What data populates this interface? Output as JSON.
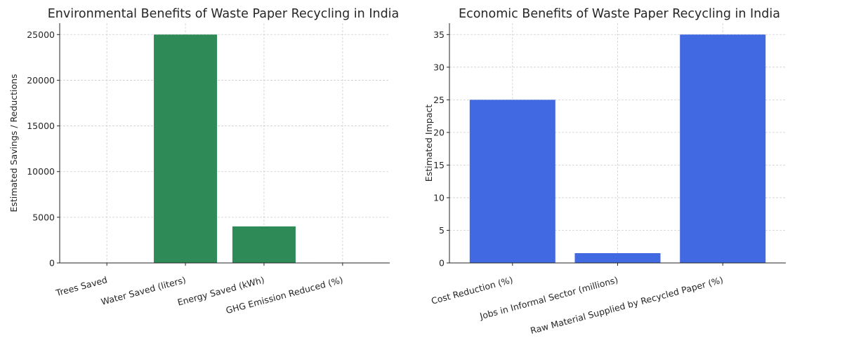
{
  "chart_data": [
    {
      "type": "bar",
      "title": "Environmental Benefits of Waste Paper Recycling in India",
      "xlabel": "",
      "ylabel": "Estimated Savings / Reductions",
      "categories": [
        "Trees Saved",
        "Water Saved (liters)",
        "Energy Saved (kWh)",
        "GHG Emission Reduced (%)"
      ],
      "values": [
        17,
        25000,
        4000,
        40
      ],
      "ylim": [
        0,
        26250
      ],
      "yticks": [
        0,
        5000,
        10000,
        15000,
        20000,
        25000
      ],
      "color": "#2e8b57",
      "grid": true
    },
    {
      "type": "bar",
      "title": "Economic Benefits of Waste Paper Recycling in India",
      "xlabel": "",
      "ylabel": "Estimated Impact",
      "categories": [
        "Cost Reduction (%)",
        "Jobs in Informal Sector (millions)",
        "Raw Material Supplied by Recycled Paper (%)"
      ],
      "values": [
        25,
        1.5,
        35
      ],
      "ylim": [
        0,
        36.75
      ],
      "yticks": [
        0,
        5,
        10,
        15,
        20,
        25,
        30,
        35
      ],
      "color": "#4169e1",
      "grid": true
    }
  ]
}
